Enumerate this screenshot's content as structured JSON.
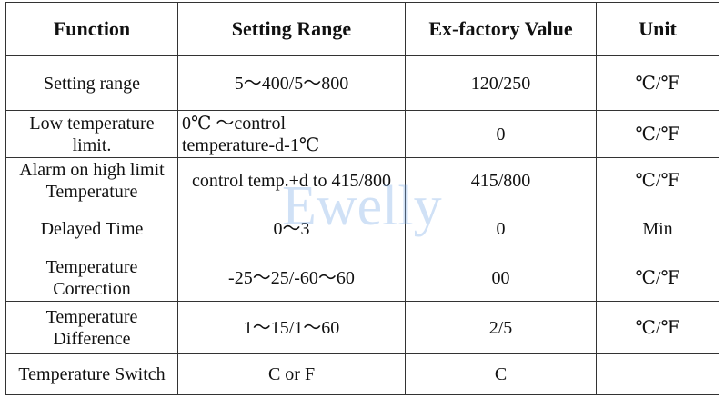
{
  "table": {
    "header": [
      "Function",
      "Setting Range",
      "Ex-factory Value",
      "Unit"
    ],
    "rows": [
      [
        [
          "Setting range"
        ],
        [
          "5～400/5～800"
        ],
        [
          "120/250"
        ],
        [
          "℃/℉"
        ]
      ],
      [
        [
          "Low temperature",
          "limit."
        ],
        [
          "0℃ ～control",
          "temperature-d-1℃"
        ],
        [
          "0"
        ],
        [
          "℃/℉"
        ]
      ],
      [
        [
          "Alarm on high limit",
          "Temperature"
        ],
        [
          "control  temp.+d to 415/800"
        ],
        [
          "415/800"
        ],
        [
          "℃/℉"
        ]
      ],
      [
        [
          "Delayed Time"
        ],
        [
          "0～3"
        ],
        [
          "0"
        ],
        [
          "Min"
        ]
      ],
      [
        [
          "Temperature",
          "Correction"
        ],
        [
          "-25～25/-60～60"
        ],
        [
          "00"
        ],
        [
          "℃/℉"
        ]
      ],
      [
        [
          "Temperature",
          "Difference"
        ],
        [
          "1～15/1～60"
        ],
        [
          "2/5"
        ],
        [
          "℃/℉"
        ]
      ],
      [
        [
          "Temperature Switch"
        ],
        [
          "C or  F"
        ],
        [
          "C"
        ],
        [
          ""
        ]
      ]
    ]
  },
  "watermark": "Ewelly"
}
